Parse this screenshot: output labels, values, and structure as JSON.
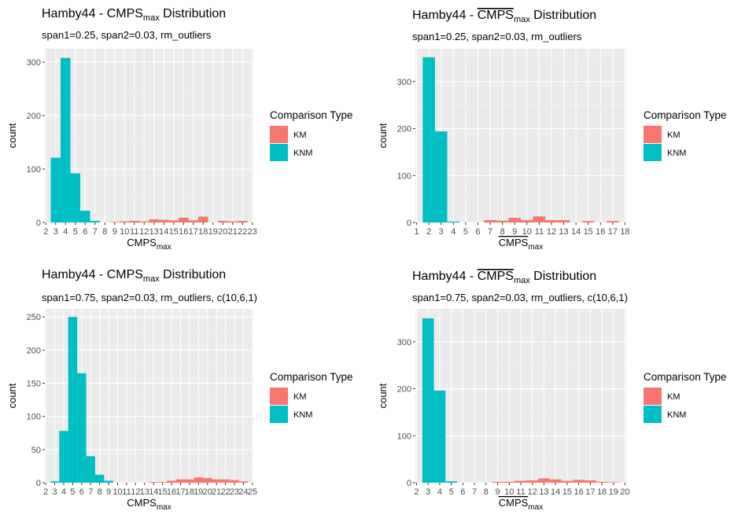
{
  "chart_data": [
    {
      "type": "bar",
      "title": "Hamby44 - CMPS",
      "title_sub": "max",
      "title_suffix": " Distribution",
      "title_overline": false,
      "subtitle": "span1=0.25, span2=0.03, rm_outliers",
      "xlabel": "CMPS",
      "xlabel_sub": "max",
      "xlabel_overline": false,
      "ylabel": "count",
      "x_ticks": [
        2,
        3,
        4,
        5,
        6,
        7,
        8,
        9,
        10,
        11,
        12,
        13,
        14,
        15,
        16,
        17,
        18,
        19,
        20,
        21,
        22,
        23
      ],
      "xlim": [
        1.9,
        23.1
      ],
      "ylim": [
        0,
        325
      ],
      "y_ticks": [
        0,
        100,
        200,
        300
      ],
      "grid": true,
      "legend_position": "right",
      "series": [
        {
          "name": "KM",
          "color": "#F8766D",
          "x": [
            9,
            10,
            11,
            12,
            13,
            14,
            15,
            16,
            17,
            18,
            19,
            20,
            21,
            22
          ],
          "values": [
            1,
            2,
            3,
            2,
            6,
            5,
            4,
            9,
            4,
            11,
            0,
            3,
            2,
            3
          ]
        },
        {
          "name": "KNM",
          "color": "#00BFC4",
          "x": [
            3,
            4,
            5,
            6,
            7
          ],
          "values": [
            121,
            308,
            92,
            22,
            3
          ]
        }
      ]
    },
    {
      "type": "bar",
      "title": "Hamby44 - ",
      "title_over_text": "CMPS",
      "title_sub": "max",
      "title_suffix": " Distribution",
      "title_overline": true,
      "subtitle": "span1=0.25, span2=0.03, rm_outliers",
      "xlabel": "CMPS",
      "xlabel_sub": "max",
      "xlabel_overline": true,
      "ylabel": "count",
      "x_ticks": [
        1,
        2,
        3,
        4,
        5,
        6,
        7,
        8,
        9,
        10,
        11,
        12,
        13,
        14,
        15,
        16,
        17,
        18
      ],
      "xlim": [
        0.9,
        18.1
      ],
      "ylim": [
        0,
        370
      ],
      "y_ticks": [
        0,
        100,
        200,
        300
      ],
      "grid": true,
      "legend_position": "right",
      "series": [
        {
          "name": "KM",
          "color": "#F8766D",
          "x": [
            7,
            8,
            9,
            10,
            11,
            12,
            13,
            15,
            17
          ],
          "values": [
            5,
            4,
            10,
            5,
            13,
            5,
            5,
            3,
            3
          ]
        },
        {
          "name": "KNM",
          "color": "#00BFC4",
          "x": [
            2,
            3,
            4
          ],
          "values": [
            352,
            194,
            2
          ]
        }
      ]
    },
    {
      "type": "bar",
      "title": "Hamby44 - CMPS",
      "title_sub": "max",
      "title_suffix": " Distribution",
      "title_overline": false,
      "subtitle": "span1=0.75, span2=0.03, rm_outliers, c(10,6,1)",
      "xlabel": "CMPS",
      "xlabel_sub": "max",
      "xlabel_overline": false,
      "ylabel": "count",
      "x_ticks": [
        2,
        3,
        4,
        5,
        6,
        7,
        8,
        9,
        10,
        11,
        12,
        13,
        14,
        15,
        16,
        17,
        18,
        19,
        20,
        21,
        22,
        23,
        24,
        25
      ],
      "xlim": [
        1.9,
        25.1
      ],
      "ylim": [
        0,
        262
      ],
      "y_ticks": [
        0,
        50,
        100,
        150,
        200,
        250
      ],
      "grid": true,
      "legend_position": "right",
      "series": [
        {
          "name": "KM",
          "color": "#F8766D",
          "x": [
            14,
            15,
            16,
            17,
            18,
            19,
            20,
            21,
            22,
            23,
            24
          ],
          "values": [
            1,
            1,
            3,
            5,
            5,
            8,
            7,
            5,
            5,
            4,
            2
          ]
        },
        {
          "name": "KNM",
          "color": "#00BFC4",
          "x": [
            3,
            4,
            5,
            6,
            7,
            8,
            9
          ],
          "values": [
            2,
            78,
            250,
            165,
            40,
            12,
            3
          ]
        }
      ]
    },
    {
      "type": "bar",
      "title": "Hamby44 - ",
      "title_over_text": "CMPS",
      "title_sub": "max",
      "title_suffix": " Distribution",
      "title_overline": true,
      "subtitle": "span1=0.75, span2=0.03, rm_outliers, c(10,6,1)",
      "xlabel": "CMPS",
      "xlabel_sub": "max",
      "xlabel_overline": true,
      "ylabel": "count",
      "x_ticks": [
        2,
        3,
        4,
        5,
        6,
        7,
        8,
        9,
        10,
        11,
        12,
        13,
        14,
        15,
        16,
        17,
        18,
        19,
        20
      ],
      "xlim": [
        1.9,
        20.1
      ],
      "ylim": [
        0,
        370
      ],
      "y_ticks": [
        0,
        100,
        200,
        300
      ],
      "grid": true,
      "legend_position": "right",
      "series": [
        {
          "name": "KM",
          "color": "#F8766D",
          "x": [
            9,
            10,
            11,
            12,
            13,
            14,
            15,
            16,
            17,
            18,
            19
          ],
          "values": [
            2,
            2,
            4,
            5,
            9,
            7,
            4,
            6,
            5,
            2,
            1
          ]
        },
        {
          "name": "KNM",
          "color": "#00BFC4",
          "x": [
            3,
            4,
            5
          ],
          "values": [
            350,
            196,
            3
          ]
        }
      ]
    }
  ],
  "legend": {
    "title": "Comparison Type",
    "items": [
      {
        "label": "KM",
        "color": "#F8766D"
      },
      {
        "label": "KNM",
        "color": "#00BFC4"
      }
    ]
  }
}
